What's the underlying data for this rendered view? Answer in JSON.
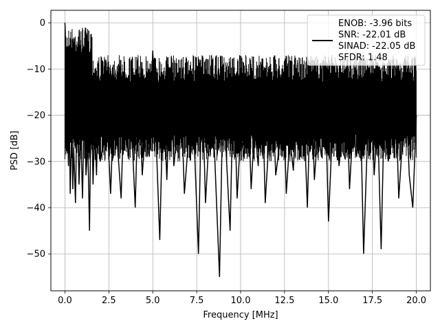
{
  "chart_data": {
    "type": "line",
    "title": "",
    "xlabel": "Frequency [MHz]",
    "ylabel": "PSD [dB]",
    "xlim": [
      -0.8,
      20.8
    ],
    "ylim": [
      -58,
      2.7
    ],
    "xticks": [
      0.0,
      2.5,
      5.0,
      7.5,
      10.0,
      12.5,
      15.0,
      17.5,
      20.0
    ],
    "xtick_labels": [
      "0.0",
      "2.5",
      "5.0",
      "7.5",
      "10.0",
      "12.5",
      "15.0",
      "17.5",
      "20.0"
    ],
    "yticks": [
      0,
      -10,
      -20,
      -30,
      -40,
      -50
    ],
    "ytick_labels": [
      "0",
      "−10",
      "−20",
      "−30",
      "−40",
      "−50"
    ],
    "grid": true,
    "legend_position": "upper-right",
    "series": [
      {
        "name": "ENOB: -3.96 bits\nSNR: -22.01 dB\nSINAD: -22.05 dB\nSFDR: 1.48",
        "color": "#000000",
        "x": [
          0.0,
          0.02,
          0.05,
          0.1,
          0.15,
          0.2,
          0.25,
          0.3,
          0.35,
          0.4,
          0.45,
          0.5,
          0.6,
          0.7,
          0.8,
          0.9,
          1.0,
          1.1,
          1.2,
          1.3,
          1.4,
          1.5,
          1.6,
          1.7,
          1.8,
          1.9,
          2.0,
          2.2,
          2.4,
          2.6,
          2.8,
          3.0,
          3.2,
          3.4,
          3.6,
          3.8,
          4.0,
          4.2,
          4.4,
          4.6,
          4.8,
          5.0,
          5.2,
          5.4,
          5.6,
          5.8,
          6.0,
          6.2,
          6.4,
          6.6,
          6.8,
          7.0,
          7.2,
          7.4,
          7.6,
          7.8,
          8.0,
          8.2,
          8.4,
          8.6,
          8.8,
          9.0,
          9.2,
          9.4,
          9.6,
          9.8,
          10.0,
          10.2,
          10.4,
          10.6,
          10.8,
          11.0,
          11.2,
          11.4,
          11.6,
          11.8,
          12.0,
          12.2,
          12.4,
          12.6,
          12.8,
          13.0,
          13.2,
          13.4,
          13.6,
          13.8,
          14.0,
          14.2,
          14.4,
          14.6,
          14.8,
          15.0,
          15.2,
          15.4,
          15.6,
          15.8,
          16.0,
          16.2,
          16.4,
          16.6,
          16.8,
          17.0,
          17.2,
          17.4,
          17.6,
          17.8,
          18.0,
          18.2,
          18.4,
          18.6,
          18.8,
          19.0,
          19.2,
          19.4,
          19.6,
          19.8,
          20.0
        ],
        "y": [
          0,
          -2,
          -26,
          -14,
          -23,
          -31,
          -18,
          -37,
          -29,
          -22,
          -36,
          -27,
          -39,
          -14,
          -35,
          -23,
          -38,
          -17,
          -33,
          -26,
          -45,
          -13,
          -35,
          -22,
          -33,
          -14,
          -30,
          -26,
          -21,
          -37,
          -15,
          -27,
          -38,
          -12,
          -29,
          -23,
          -40,
          -11,
          -33,
          -22,
          -29,
          -6,
          -26,
          -47,
          -14,
          -34,
          -10,
          -31,
          -23,
          -15,
          -37,
          -27,
          -13,
          -30,
          -50,
          -11,
          -39,
          -25,
          -17,
          -36,
          -55,
          -15,
          -30,
          -45,
          -10,
          -38,
          -24,
          -29,
          -13,
          -36,
          -22,
          -31,
          -9,
          -39,
          -26,
          -14,
          -33,
          -27,
          -10,
          -37,
          -25,
          -32,
          -13,
          -29,
          -20,
          -40,
          -11,
          -34,
          -23,
          -29,
          -14,
          -43,
          -25,
          -12,
          -31,
          -24,
          -10,
          -36,
          -22,
          -29,
          -15,
          -50,
          -27,
          -11,
          -33,
          -21,
          -49,
          -14,
          -30,
          -23,
          -12,
          -38,
          -26,
          -14,
          -33,
          -40,
          -20
        ]
      }
    ]
  }
}
